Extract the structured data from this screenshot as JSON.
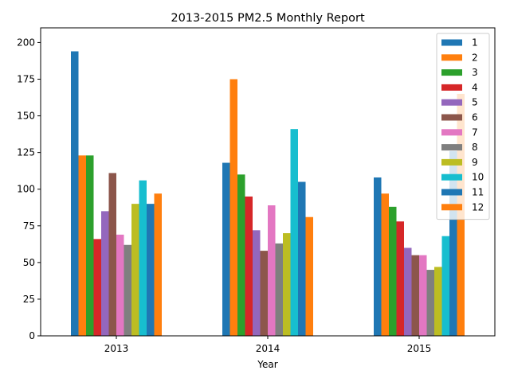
{
  "chart_data": {
    "type": "bar",
    "title": "2013-2015 PM2.5 Monthly Report",
    "xlabel": "Year",
    "ylabel": "",
    "categories": [
      "2013",
      "2014",
      "2015"
    ],
    "ylim": [
      0,
      210
    ],
    "yticks": [
      0,
      25,
      50,
      75,
      100,
      125,
      150,
      175,
      200
    ],
    "legend_position": "top-right",
    "grid": false,
    "series": [
      {
        "name": "1",
        "color": "#1f77b4",
        "values": [
          194,
          118,
          108
        ]
      },
      {
        "name": "2",
        "color": "#ff7f0e",
        "values": [
          123,
          175,
          97
        ]
      },
      {
        "name": "3",
        "color": "#2ca02c",
        "values": [
          123,
          110,
          88
        ]
      },
      {
        "name": "4",
        "color": "#d62728",
        "values": [
          66,
          95,
          78
        ]
      },
      {
        "name": "5",
        "color": "#9467bd",
        "values": [
          85,
          72,
          60
        ]
      },
      {
        "name": "6",
        "color": "#8c564b",
        "values": [
          111,
          58,
          55
        ]
      },
      {
        "name": "7",
        "color": "#e377c2",
        "values": [
          69,
          89,
          55
        ]
      },
      {
        "name": "8",
        "color": "#7f7f7f",
        "values": [
          62,
          63,
          45
        ]
      },
      {
        "name": "9",
        "color": "#bcbd22",
        "values": [
          90,
          70,
          47
        ]
      },
      {
        "name": "10",
        "color": "#17becf",
        "values": [
          106,
          141,
          68
        ]
      },
      {
        "name": "11",
        "color": "#1f77b4",
        "values": [
          90,
          105,
          126
        ]
      },
      {
        "name": "12",
        "color": "#ff7f0e",
        "values": [
          97,
          81,
          165
        ]
      }
    ]
  }
}
